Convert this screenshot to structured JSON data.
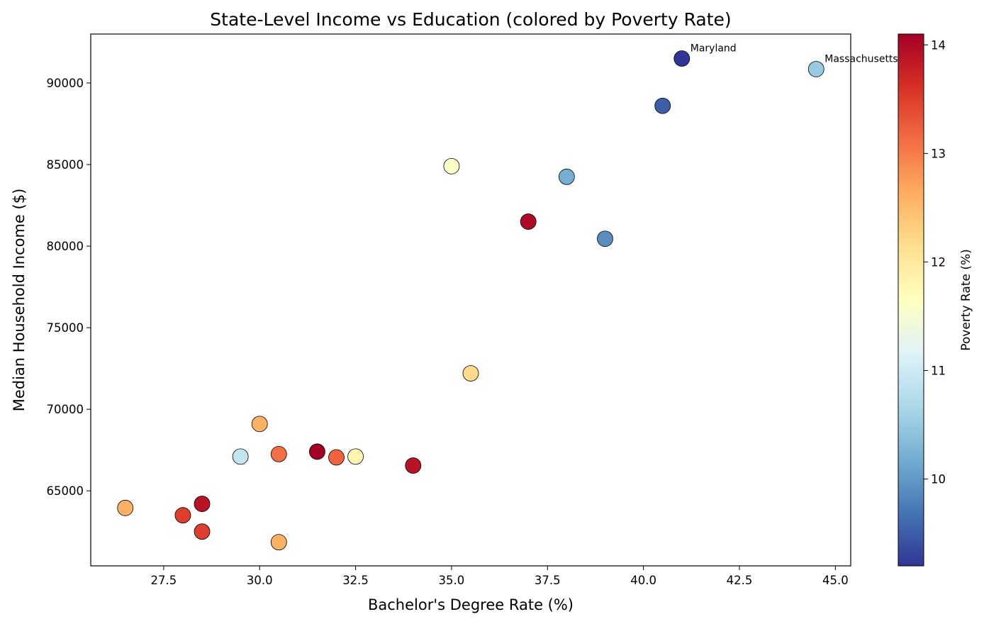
{
  "chart_data": {
    "type": "scatter",
    "title": "State-Level Income vs Education (colored by Poverty Rate)",
    "xlabel": "Bachelor's Degree Rate (%)",
    "ylabel": "Median Household Income ($)",
    "xlim": [
      25.6,
      45.4
    ],
    "ylim": [
      60400,
      93000
    ],
    "xticks": [
      27.5,
      30.0,
      32.5,
      35.0,
      37.5,
      40.0,
      42.5,
      45.0
    ],
    "xtick_labels": [
      "27.5",
      "30.0",
      "32.5",
      "35.0",
      "37.5",
      "40.0",
      "42.5",
      "45.0"
    ],
    "yticks": [
      65000,
      70000,
      75000,
      80000,
      85000,
      90000
    ],
    "ytick_labels": [
      "65000",
      "70000",
      "75000",
      "80000",
      "85000",
      "90000"
    ],
    "grid": false,
    "colorbar": {
      "label": "Poverty Rate (%)",
      "colormap": "RdYlBu_r",
      "range": [
        9.2,
        14.1
      ],
      "ticks": [
        10,
        11,
        12,
        13,
        14
      ],
      "tick_labels": [
        "10",
        "11",
        "12",
        "13",
        "14"
      ]
    },
    "points": [
      {
        "x": 41.0,
        "y": 91500,
        "c": 9.2,
        "label": "Maryland"
      },
      {
        "x": 44.5,
        "y": 90850,
        "c": 10.5,
        "label": "Massachusetts"
      },
      {
        "x": 40.5,
        "y": 88600,
        "c": 9.5
      },
      {
        "x": 35.0,
        "y": 84900,
        "c": 11.6
      },
      {
        "x": 38.0,
        "y": 84250,
        "c": 10.2
      },
      {
        "x": 37.0,
        "y": 81500,
        "c": 14.0
      },
      {
        "x": 39.0,
        "y": 80450,
        "c": 9.9
      },
      {
        "x": 35.5,
        "y": 72200,
        "c": 12.2
      },
      {
        "x": 30.0,
        "y": 69100,
        "c": 12.6
      },
      {
        "x": 29.5,
        "y": 67100,
        "c": 10.9
      },
      {
        "x": 30.5,
        "y": 67250,
        "c": 13.1
      },
      {
        "x": 31.5,
        "y": 67400,
        "c": 14.1
      },
      {
        "x": 32.0,
        "y": 67050,
        "c": 13.2
      },
      {
        "x": 32.5,
        "y": 67100,
        "c": 11.8
      },
      {
        "x": 34.0,
        "y": 66550,
        "c": 13.9
      },
      {
        "x": 26.5,
        "y": 63950,
        "c": 12.6
      },
      {
        "x": 28.5,
        "y": 64200,
        "c": 13.9
      },
      {
        "x": 28.0,
        "y": 63500,
        "c": 13.5
      },
      {
        "x": 28.5,
        "y": 62500,
        "c": 13.5
      },
      {
        "x": 30.5,
        "y": 61850,
        "c": 12.6
      }
    ]
  }
}
